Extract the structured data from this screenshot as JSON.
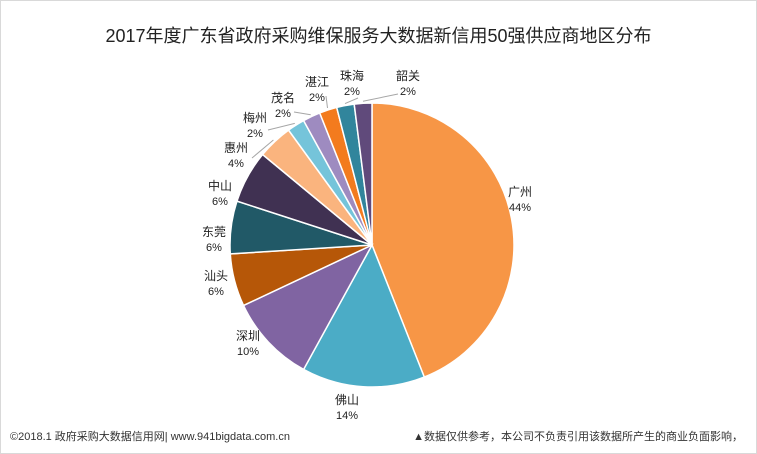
{
  "title": "2017年度广东省政府采购维保服务大数据新信用50强供应商地区分布",
  "footer": {
    "left": "©2018.1 政府采购大数据信用网| www.941bigdata.com.cn",
    "right": "▲数据仅供参考，本公司不负责引用该数据所产生的商业负面影响，"
  },
  "chart_data": {
    "type": "pie",
    "title": "2017年度广东省政府采购维保服务大数据新信用50强供应商地区分布",
    "start": "12 o'clock",
    "direction": "clockwise",
    "legend": "none",
    "slices": [
      {
        "label": "广州",
        "value": 44,
        "value_label": "44%",
        "color": "#F79646"
      },
      {
        "label": "佛山",
        "value": 14,
        "value_label": "14%",
        "color": "#4BACC6"
      },
      {
        "label": "深圳",
        "value": 10,
        "value_label": "10%",
        "color": "#8064A2"
      },
      {
        "label": "汕头",
        "value": 6,
        "value_label": "6%",
        "color": "#B65708"
      },
      {
        "label": "东莞",
        "value": 6,
        "value_label": "6%",
        "color": "#215967"
      },
      {
        "label": "中山",
        "value": 6,
        "value_label": "6%",
        "color": "#403152"
      },
      {
        "label": "惠州",
        "value": 4,
        "value_label": "4%",
        "color": "#FAB47E"
      },
      {
        "label": "梅州",
        "value": 2,
        "value_label": "2%",
        "color": "#75C4DA"
      },
      {
        "label": "茂名",
        "value": 2,
        "value_label": "2%",
        "color": "#9E8BC0"
      },
      {
        "label": "湛江",
        "value": 2,
        "value_label": "2%",
        "color": "#F37B1E"
      },
      {
        "label": "珠海",
        "value": 2,
        "value_label": "2%",
        "color": "#31859C"
      },
      {
        "label": "韶关",
        "value": 2,
        "value_label": "2%",
        "color": "#604A7B"
      }
    ]
  }
}
